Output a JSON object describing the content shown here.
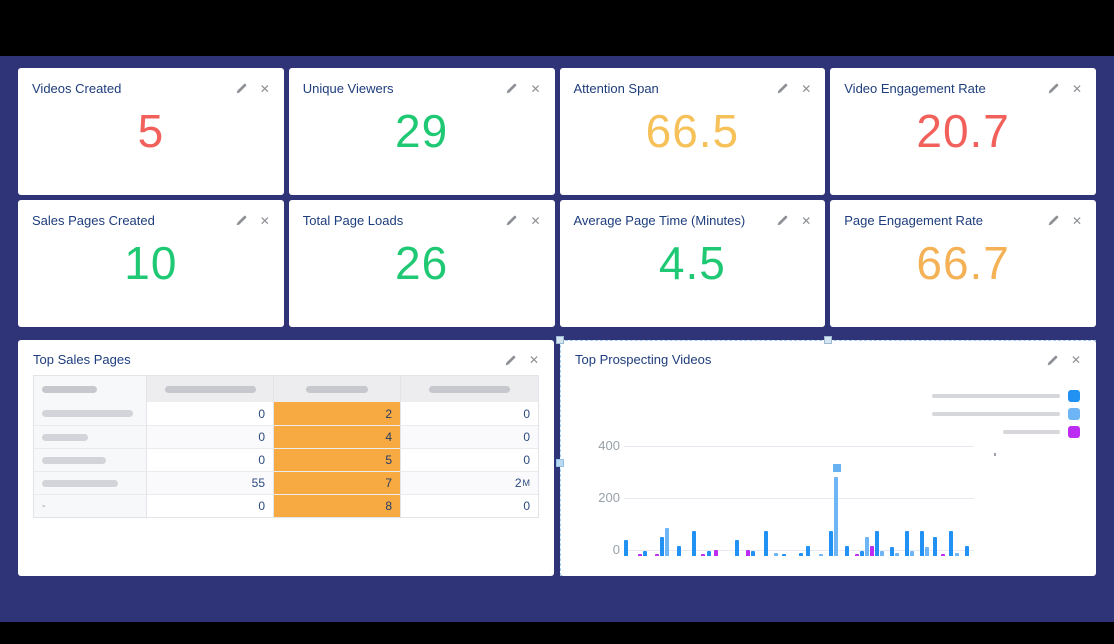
{
  "window": {
    "bg": "#000000",
    "canvas_bg": "#2f3377"
  },
  "card_actions": {
    "edit_icon": "edit-pencil",
    "close_icon": "✕"
  },
  "cards": [
    {
      "title": "Videos Created",
      "value": "5",
      "value_color": "#f2605c"
    },
    {
      "title": "Unique Viewers",
      "value": "29",
      "value_color": "#1fc974"
    },
    {
      "title": "Attention Span",
      "value": "66.5",
      "value_color": "#f6c159"
    },
    {
      "title": "Video Engagement Rate",
      "value": "20.7",
      "value_color": "#f2605c"
    },
    {
      "title": "Sales Pages Created",
      "value": "10",
      "value_color": "#1fc974"
    },
    {
      "title": "Total Page Loads",
      "value": "26",
      "value_color": "#1fc974"
    },
    {
      "title": "Average Page Time (Minutes)",
      "value": "4.5",
      "value_color": "#1fc974"
    },
    {
      "title": "Page Engagement Rate",
      "value": "66.7",
      "value_color": "#f4b155"
    }
  ],
  "table_panel": {
    "title": "Top Sales Pages",
    "labels_redacted": true,
    "highlight_color": "#f7aa42",
    "header_redacted_widths": [
      55,
      91,
      62,
      81
    ],
    "rows": [
      {
        "label_redacted_width": 91,
        "values": [
          "0",
          "2",
          "0"
        ]
      },
      {
        "label_redacted_width": 46,
        "values": [
          "0",
          "4",
          "0"
        ]
      },
      {
        "label_redacted_width": 64,
        "values": [
          "0",
          "5",
          "0"
        ]
      },
      {
        "label_redacted_width": 76,
        "values": [
          "55",
          "7",
          "2M"
        ]
      },
      {
        "label_text": "-",
        "values": [
          "0",
          "8",
          "0"
        ]
      }
    ]
  },
  "chart_panel": {
    "title": "Top Prospecting Videos",
    "legend": [
      {
        "redacted_width": 128,
        "color": "#2191f4"
      },
      {
        "redacted_width": 128,
        "color": "#6db5f4"
      },
      {
        "redacted_width": 57,
        "color": "#bc2cf2"
      }
    ]
  },
  "chart_data": {
    "type": "bar",
    "title": "Top Prospecting Videos",
    "ylim": [
      0,
      400
    ],
    "yticks": [
      0,
      200,
      400
    ],
    "grid": true,
    "legend_position": "top-right",
    "legend_labels_redacted": true,
    "x_axis_labels": "none",
    "series_colors": {
      "b": "#2191f4",
      "l": "#6db5f4",
      "m": "#bc2cf2"
    },
    "series_names": {
      "b": "series-1-blue",
      "l": "series-2-light-blue",
      "m": "series-3-magenta"
    },
    "bars": [
      {
        "g": 0,
        "c": "b",
        "v": 60
      },
      {
        "g": 10,
        "c": "m",
        "v": 6
      },
      {
        "g": 1,
        "c": "b",
        "v": 21
      },
      {
        "g": 8,
        "c": "m",
        "v": 6
      },
      {
        "g": 1,
        "c": "b",
        "v": 73
      },
      {
        "g": 1,
        "c": "l",
        "v": 106
      },
      {
        "g": 8,
        "c": "b",
        "v": 40
      },
      {
        "g": 11,
        "c": "b",
        "v": 95
      },
      {
        "g": 5,
        "c": "m",
        "v": 6
      },
      {
        "g": 2,
        "c": "b",
        "v": 21
      },
      {
        "g": 3,
        "c": "m",
        "v": 25
      },
      {
        "g": 17,
        "c": "b",
        "v": 60
      },
      {
        "g": 7,
        "c": "m",
        "v": 23
      },
      {
        "g": 1,
        "c": "b",
        "v": 21
      },
      {
        "g": 9,
        "c": "b",
        "v": 95
      },
      {
        "g": 6,
        "c": "l",
        "v": 13
      },
      {
        "g": 4,
        "c": "b",
        "v": 6
      },
      {
        "g": 13,
        "c": "b",
        "v": 11
      },
      {
        "g": 3,
        "c": "b",
        "v": 40
      },
      {
        "g": 9,
        "c": "l",
        "v": 8
      },
      {
        "g": 6,
        "c": "b",
        "v": 95
      },
      {
        "g": 1,
        "c": "l",
        "v": 305
      },
      {
        "g": 7,
        "c": "b",
        "v": 40
      },
      {
        "g": 6,
        "c": "m",
        "v": 8
      },
      {
        "g": 1,
        "c": "b",
        "v": 21
      },
      {
        "g": 1,
        "c": "l",
        "v": 73
      },
      {
        "g": 1,
        "c": "m",
        "v": 40
      },
      {
        "g": 1,
        "c": "b",
        "v": 95
      },
      {
        "g": 1,
        "c": "l",
        "v": 21
      },
      {
        "g": 6,
        "c": "b",
        "v": 36
      },
      {
        "g": 1,
        "c": "l",
        "v": 13
      },
      {
        "g": 6,
        "c": "b",
        "v": 95
      },
      {
        "g": 1,
        "c": "l",
        "v": 21
      },
      {
        "g": 6,
        "c": "b",
        "v": 95
      },
      {
        "g": 1,
        "c": "l",
        "v": 36
      },
      {
        "g": 4,
        "c": "b",
        "v": 73
      },
      {
        "g": 4,
        "c": "m",
        "v": 8
      },
      {
        "g": 4,
        "c": "b",
        "v": 95
      },
      {
        "g": 2,
        "c": "l",
        "v": 13
      },
      {
        "g": 6,
        "c": "b",
        "v": 40
      }
    ]
  }
}
